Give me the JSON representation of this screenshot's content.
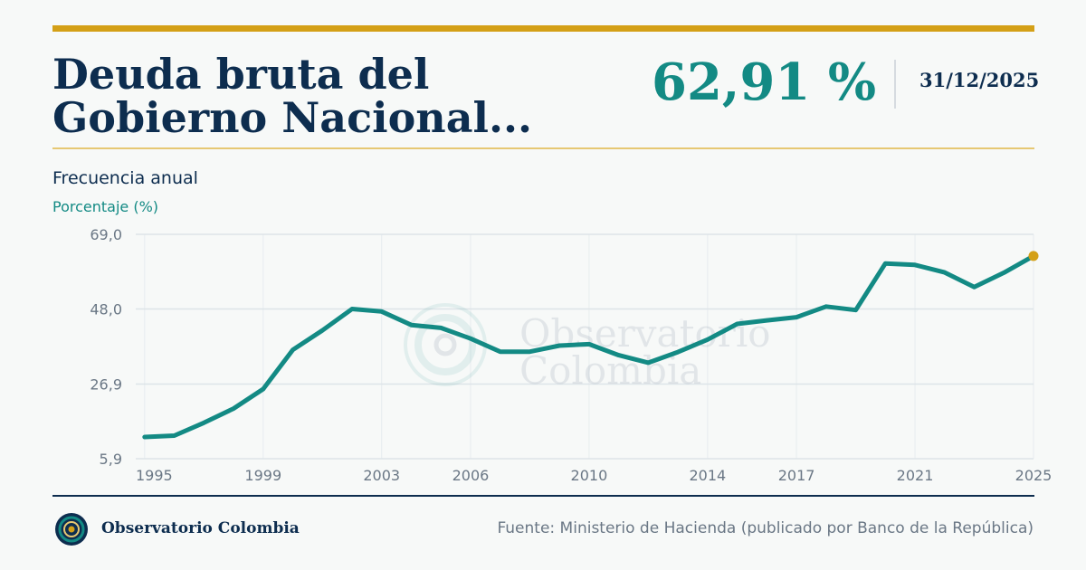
{
  "header": {
    "title": "Deuda bruta del Gobierno Nacional...",
    "value": "62,91 %",
    "date": "31/12/2025"
  },
  "frequency": "Frecuencia anual",
  "unit": "Porcentaje (%)",
  "watermark": {
    "line1": "Observatorio",
    "line2": "Colombia"
  },
  "footer": {
    "brand": "Observatorio Colombia",
    "source": "Fuente: Ministerio de Hacienda (publicado por Banco de la República)"
  },
  "colors": {
    "line": "#138a84",
    "accent": "#d4a017",
    "navy": "#0d2d4f"
  },
  "chart_data": {
    "type": "line",
    "x": [
      1995,
      1996,
      1997,
      1998,
      1999,
      2000,
      2001,
      2002,
      2003,
      2004,
      2005,
      2006,
      2007,
      2008,
      2009,
      2010,
      2011,
      2012,
      2013,
      2014,
      2015,
      2016,
      2017,
      2018,
      2019,
      2020,
      2021,
      2022,
      2023,
      2024,
      2025
    ],
    "values": [
      12.0,
      12.4,
      16.0,
      20.0,
      25.5,
      36.5,
      42.0,
      48.0,
      47.3,
      43.5,
      42.7,
      39.7,
      36.0,
      36.0,
      37.7,
      38.1,
      35.0,
      32.9,
      35.9,
      39.4,
      43.8,
      44.8,
      45.7,
      48.7,
      47.7,
      60.8,
      60.4,
      58.3,
      54.2,
      58.2,
      62.91
    ],
    "x_ticks": [
      "1995",
      "1999",
      "2003",
      "2006",
      "2010",
      "2014",
      "2017",
      "2021",
      "2025"
    ],
    "y_ticks": [
      "69,0",
      "48,0",
      "26,9",
      "5,9"
    ],
    "ylim": [
      5.9,
      69.0
    ],
    "xlim": [
      1994.7,
      2025
    ],
    "grid": true,
    "ylabel": "Porcentaje (%)"
  }
}
